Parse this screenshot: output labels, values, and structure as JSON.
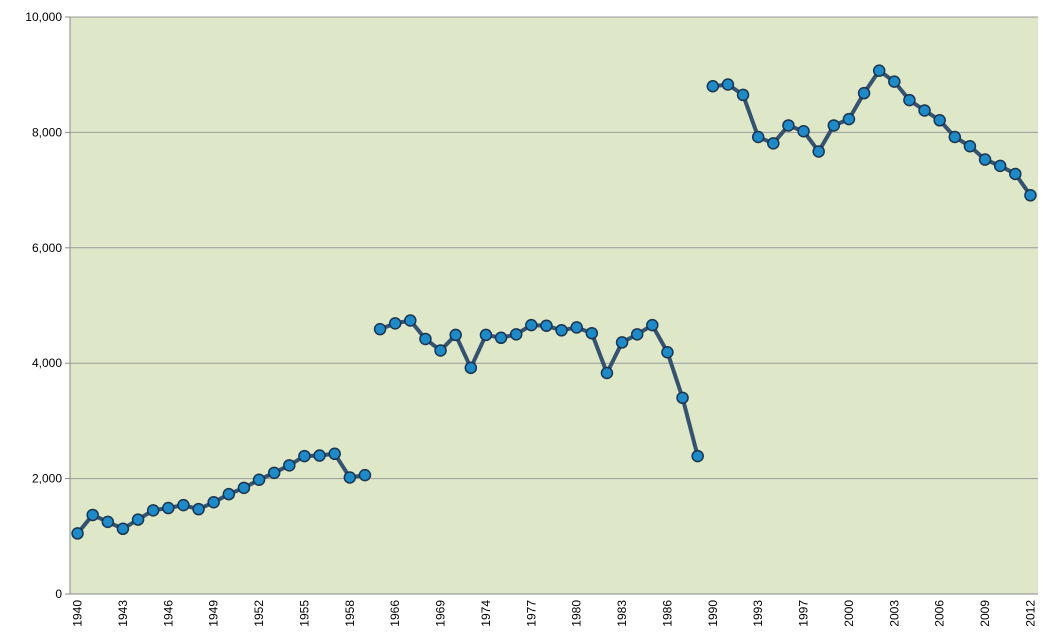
{
  "chart_data": {
    "type": "line",
    "categories": [
      "1940",
      null,
      null,
      "1943",
      null,
      null,
      "1946",
      null,
      null,
      "1949",
      null,
      null,
      "1952",
      null,
      null,
      "1955",
      null,
      null,
      "1958",
      null,
      null,
      "1966",
      null,
      null,
      "1969",
      null,
      null,
      "1974",
      null,
      null,
      "1977",
      null,
      null,
      "1980",
      null,
      null,
      "1983",
      null,
      null,
      "1986",
      null,
      null,
      "1990",
      null,
      null,
      "1993",
      null,
      null,
      "1997",
      null,
      null,
      "2000",
      null,
      null,
      "2003",
      null,
      null,
      "2006",
      null,
      null,
      "2009",
      null,
      null,
      "2012"
    ],
    "series": [
      {
        "color": "#35536f",
        "marker_color": "#1f8ac8",
        "values": [
          1050,
          1370,
          1250,
          1130,
          1290,
          1450,
          1490,
          1540,
          1470,
          1590,
          1730,
          1840,
          1980,
          2100,
          2230,
          2390,
          2400,
          2430,
          2020,
          2060,
          null,
          null,
          null,
          null,
          null,
          null,
          null,
          null,
          null,
          null,
          null,
          null,
          null,
          null,
          null,
          null,
          null,
          null,
          null,
          null,
          null,
          null,
          null,
          null,
          null,
          null,
          null,
          null,
          null,
          null,
          null,
          null,
          null,
          null,
          null,
          null,
          null,
          null,
          null,
          null,
          null,
          null,
          null,
          null
        ]
      },
      {
        "color": "#35536f",
        "marker_color": "#1f8ac8",
        "values": [
          null,
          null,
          null,
          null,
          null,
          null,
          null,
          null,
          null,
          null,
          null,
          null,
          null,
          null,
          null,
          null,
          null,
          null,
          null,
          null,
          4590,
          4690,
          4740,
          4420,
          4220,
          4490,
          3920,
          4490,
          4440,
          4500,
          4660,
          4650,
          4570,
          4620,
          4520,
          3830,
          4360,
          4500,
          4660,
          4190,
          3400,
          2390,
          null,
          null,
          null,
          null,
          null,
          null,
          null,
          null,
          null,
          null,
          null,
          null,
          null,
          null,
          null,
          null,
          null,
          null,
          null,
          null,
          null,
          null
        ]
      },
      {
        "color": "#35536f",
        "marker_color": "#1f8ac8",
        "values": [
          null,
          null,
          null,
          null,
          null,
          null,
          null,
          null,
          null,
          null,
          null,
          null,
          null,
          null,
          null,
          null,
          null,
          null,
          null,
          null,
          null,
          null,
          null,
          null,
          null,
          null,
          null,
          null,
          null,
          null,
          null,
          null,
          null,
          null,
          null,
          null,
          null,
          null,
          null,
          null,
          null,
          null,
          8800,
          8830,
          8650,
          7920,
          7810,
          8120,
          8020,
          7670,
          8120,
          8230,
          8680,
          9070,
          8880,
          8560,
          8380,
          8210,
          7920,
          7760,
          7530,
          7420,
          7280,
          6910
        ]
      }
    ],
    "ylim": [
      0,
      10000
    ],
    "yticks": [
      0,
      {
        "value": 2000,
        "label": "2,000"
      },
      {
        "value": 4000,
        "label": "4,000"
      },
      {
        "value": 6000,
        "label": "6,000"
      },
      {
        "value": 8000,
        "label": "8,000"
      },
      {
        "value": 10000,
        "label": "10,000"
      }
    ],
    "grid": true,
    "background": "#dfe7c9"
  }
}
